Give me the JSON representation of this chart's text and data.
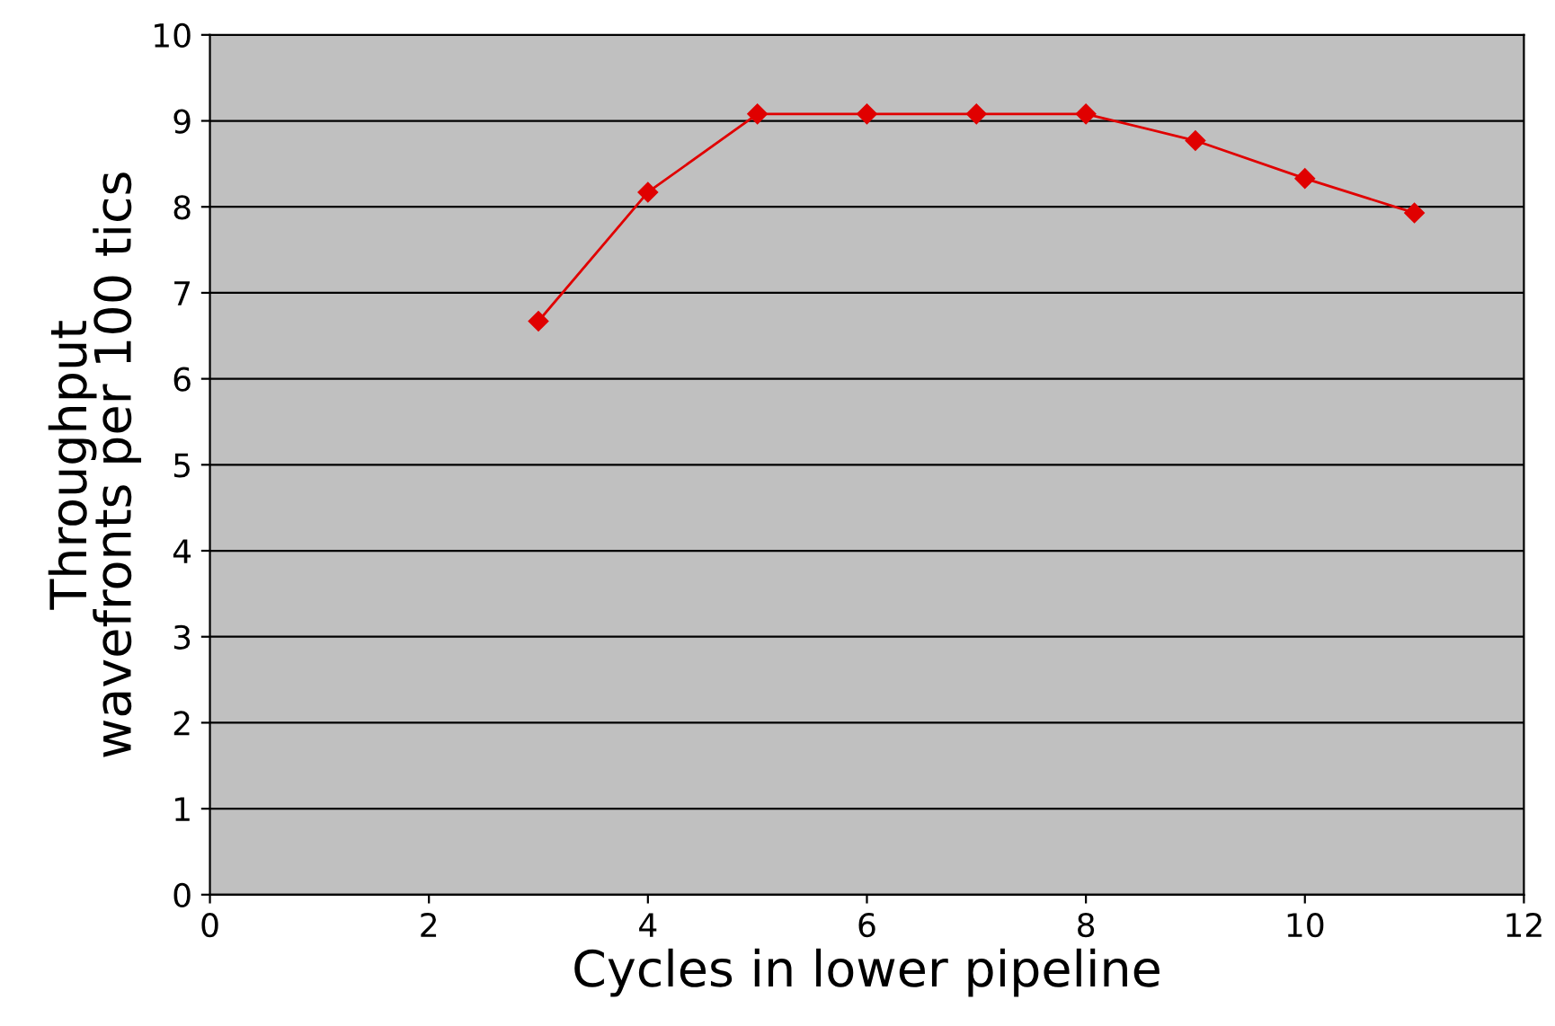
{
  "chart_data": {
    "type": "line",
    "xlabel": "Cycles in lower pipeline",
    "ylabel": "Throughput\nwavefronts per 100 tics",
    "x": [
      3,
      4,
      5,
      6,
      7,
      8,
      9,
      10,
      11
    ],
    "series": [
      {
        "color": "#e00000",
        "values": [
          6.67,
          8.17,
          9.08,
          9.08,
          9.08,
          9.08,
          8.77,
          8.33,
          7.93
        ]
      }
    ],
    "xlim": [
      0,
      12
    ],
    "xticks": [
      0,
      2,
      4,
      6,
      8,
      10,
      12
    ],
    "ylim": [
      0,
      10
    ],
    "yticks": [
      0,
      1,
      2,
      3,
      4,
      5,
      6,
      7,
      8,
      9,
      10
    ],
    "grid": "y",
    "marker": "diamond",
    "line_style": "solid"
  }
}
